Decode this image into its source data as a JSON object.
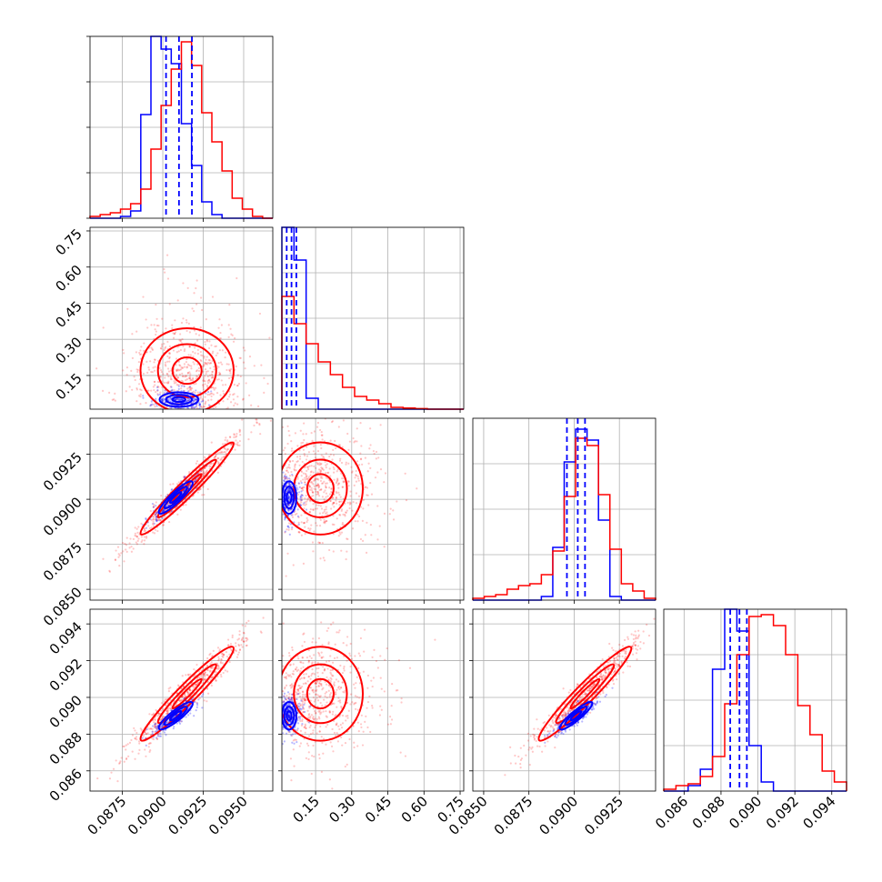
{
  "chart_data": {
    "type": "corner",
    "grid": true,
    "colors": {
      "series_a": "#ff0000",
      "series_b": "#0000ff"
    },
    "params": [
      {
        "index": 0,
        "range": [
          0.0855,
          0.0968
        ],
        "ticks": [
          0.0875,
          0.09,
          0.0925,
          0.095
        ],
        "tick_labels": [
          "0.0875",
          "0.0900",
          "0.0925",
          "0.0950"
        ]
      },
      {
        "index": 1,
        "range": [
          0.01,
          0.765
        ],
        "ticks": [
          0.15,
          0.3,
          0.45,
          0.6,
          0.75
        ],
        "tick_labels": [
          "0.15",
          "0.30",
          "0.45",
          "0.60",
          "0.75"
        ]
      },
      {
        "index": 2,
        "range": [
          0.0844,
          0.0945
        ],
        "ticks": [
          0.085,
          0.0875,
          0.09,
          0.0925
        ],
        "tick_labels": [
          "0.0850",
          "0.0875",
          "0.0900",
          "0.0925"
        ]
      },
      {
        "index": 3,
        "range": [
          0.0849,
          0.0948
        ],
        "ticks": [
          0.086,
          0.088,
          0.09,
          0.092,
          0.094
        ],
        "tick_labels": [
          "0.086",
          "0.088",
          "0.090",
          "0.092",
          "0.094"
        ]
      }
    ],
    "histograms": [
      {
        "param": 0,
        "series_a": [
          0.01,
          0.02,
          0.03,
          0.05,
          0.08,
          0.16,
          0.38,
          0.62,
          0.82,
          0.97,
          0.84,
          0.58,
          0.42,
          0.26,
          0.11,
          0.05,
          0.01,
          0.0
        ],
        "series_b": [
          0.0,
          0.0,
          0.0,
          0.01,
          0.04,
          0.57,
          1.0,
          0.93,
          0.85,
          0.52,
          0.29,
          0.09,
          0.02,
          0.0,
          0.0,
          0.0,
          0.0,
          0.0
        ],
        "quantiles_b": [
          0.0902,
          0.091,
          0.0918
        ]
      },
      {
        "param": 1,
        "series_a": [
          0.62,
          0.47,
          0.36,
          0.26,
          0.19,
          0.12,
          0.07,
          0.05,
          0.03,
          0.01,
          0.006,
          0.003,
          0.0,
          0.0,
          0.0
        ],
        "series_b": [
          1.0,
          0.82,
          0.06,
          0.0,
          0.0,
          0.0,
          0.0,
          0.0,
          0.0,
          0.0,
          0.0,
          0.0,
          0.0,
          0.0,
          0.0
        ],
        "quantiles_b": [
          0.03,
          0.05,
          0.07
        ]
      },
      {
        "param": 2,
        "series_a": [
          0.01,
          0.02,
          0.03,
          0.06,
          0.08,
          0.09,
          0.14,
          0.27,
          0.57,
          0.89,
          0.85,
          0.58,
          0.28,
          0.09,
          0.05,
          0.01
        ],
        "series_b": [
          0.0,
          0.0,
          0.0,
          0.0,
          0.0,
          0.0,
          0.02,
          0.29,
          0.76,
          0.94,
          0.88,
          0.44,
          0.02,
          0.0,
          0.0,
          0.0
        ],
        "quantiles_b": [
          0.0896,
          0.0902,
          0.0906
        ]
      },
      {
        "param": 3,
        "series_a": [
          0.01,
          0.03,
          0.04,
          0.08,
          0.19,
          0.48,
          0.75,
          0.96,
          0.97,
          0.91,
          0.75,
          0.47,
          0.31,
          0.11,
          0.05
        ],
        "series_b": [
          0.0,
          0.0,
          0.03,
          0.12,
          0.67,
          1.0,
          0.88,
          0.25,
          0.05,
          0.0,
          0.0,
          0.0,
          0.0,
          0.0,
          0.0
        ],
        "quantiles_b": [
          0.0885,
          0.089,
          0.0894
        ]
      }
    ],
    "scatter_panels": [
      {
        "x_param": 0,
        "y_param": 1,
        "series_a": {
          "center": [
            0.0915,
            0.17
          ],
          "spread": [
            0.0018,
            0.11
          ],
          "corr": 0.0
        },
        "series_b": {
          "center": [
            0.091,
            0.05
          ],
          "spread": [
            0.0008,
            0.02
          ],
          "corr": 0.0
        }
      },
      {
        "x_param": 0,
        "y_param": 2,
        "series_a": {
          "center": [
            0.0915,
            0.0906
          ],
          "spread": [
            0.0018,
            0.0016
          ],
          "corr": 0.97
        },
        "series_b": {
          "center": [
            0.0908,
            0.0901
          ],
          "spread": [
            0.0007,
            0.0006
          ],
          "corr": 0.9
        }
      },
      {
        "x_param": 1,
        "y_param": 2,
        "series_a": {
          "center": [
            0.17,
            0.0906
          ],
          "spread": [
            0.11,
            0.0016
          ],
          "corr": 0.0
        },
        "series_b": {
          "center": [
            0.04,
            0.0901
          ],
          "spread": [
            0.02,
            0.0006
          ],
          "corr": 0.0
        }
      },
      {
        "x_param": 0,
        "y_param": 3,
        "series_a": {
          "center": [
            0.0915,
            0.0902
          ],
          "spread": [
            0.0018,
            0.0016
          ],
          "corr": 0.96
        },
        "series_b": {
          "center": [
            0.0908,
            0.089
          ],
          "spread": [
            0.0007,
            0.0005
          ],
          "corr": 0.88
        }
      },
      {
        "x_param": 1,
        "y_param": 3,
        "series_a": {
          "center": [
            0.17,
            0.0902
          ],
          "spread": [
            0.11,
            0.0016
          ],
          "corr": 0.0
        },
        "series_b": {
          "center": [
            0.04,
            0.089
          ],
          "spread": [
            0.02,
            0.0005
          ],
          "corr": 0.0
        }
      },
      {
        "x_param": 2,
        "y_param": 3,
        "series_a": {
          "center": [
            0.0906,
            0.0902
          ],
          "spread": [
            0.0016,
            0.0016
          ],
          "corr": 0.96
        },
        "series_b": {
          "center": [
            0.0901,
            0.089
          ],
          "spread": [
            0.0006,
            0.0005
          ],
          "corr": 0.9
        }
      }
    ]
  }
}
